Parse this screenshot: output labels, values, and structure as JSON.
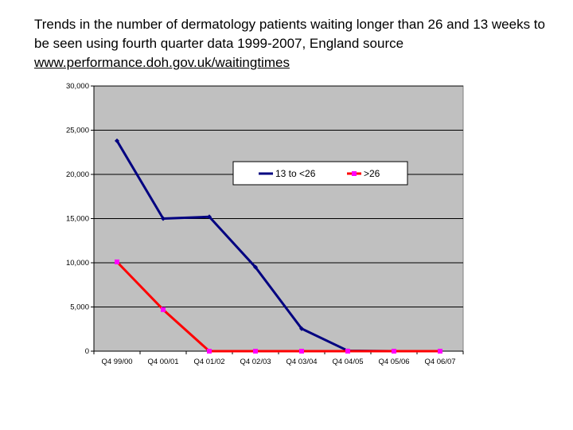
{
  "title_text": "Trends in the number of dermatology patients waiting longer than 26 and 13 weeks to be seen using fourth quarter data 1999-2007, England source",
  "source_link": "www.performance.doh.gov.uk/waitingtimes",
  "chart_data": {
    "type": "line",
    "title": "Trends in the number of dermatology patients waiting longer than 26 and 13 weeks to be seen using fourth quarter data 1999-2007, England",
    "categories": [
      "Q4 99/00",
      "Q4 00/01",
      "Q4 01/02",
      "Q4 02/03",
      "Q4 03/04",
      "Q4 04/05",
      "Q4 05/06",
      "Q4 06/07"
    ],
    "ylim": [
      0,
      30000
    ],
    "yticks": [
      0,
      5000,
      10000,
      15000,
      20000,
      25000,
      30000
    ],
    "ytick_labels": [
      "0",
      "5,000",
      "10,000",
      "15,000",
      "20,000",
      "25,000",
      "30,000"
    ],
    "grid": true,
    "legend_position": "upper-right",
    "series": [
      {
        "name": "13 to <26",
        "color": "#000080",
        "values": [
          23800,
          15000,
          15200,
          9500,
          2550,
          50,
          0,
          0
        ]
      },
      {
        "name": ">26",
        "color": "#ff0000",
        "marker_color": "#ff00ff",
        "values": [
          10100,
          4700,
          0,
          0,
          0,
          0,
          0,
          0
        ]
      }
    ],
    "plot_bg": "#c0c0c0"
  }
}
